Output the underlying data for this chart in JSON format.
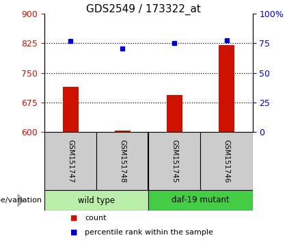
{
  "title": "GDS2549 / 173322_at",
  "samples": [
    "GSM151747",
    "GSM151748",
    "GSM151745",
    "GSM151746"
  ],
  "bar_values": [
    715,
    603,
    693,
    820
  ],
  "percentile_values": [
    830,
    812,
    826,
    833
  ],
  "bar_color": "#cc1100",
  "dot_color": "#0000cc",
  "ylim_left": [
    600,
    900
  ],
  "ylim_right": [
    0,
    100
  ],
  "yticks_left": [
    600,
    675,
    750,
    825,
    900
  ],
  "yticks_right": [
    0,
    25,
    50,
    75,
    100
  ],
  "ytick_labels_right": [
    "0",
    "25",
    "50",
    "75",
    "100%"
  ],
  "hlines": [
    675,
    750,
    825
  ],
  "groups": [
    {
      "label": "wild type",
      "indices": [
        0,
        1
      ],
      "color": "#bbeeaa"
    },
    {
      "label": "daf-19 mutant",
      "indices": [
        2,
        3
      ],
      "color": "#44cc44"
    }
  ],
  "group_label": "genotype/variation",
  "legend_bar_label": "count",
  "legend_dot_label": "percentile rank within the sample",
  "bar_bottom": 600,
  "bar_width": 0.3
}
